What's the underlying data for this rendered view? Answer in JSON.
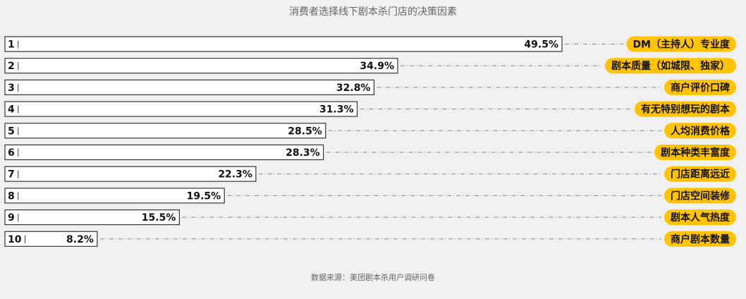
{
  "title": "消费者选择线下剧本杀门店的决策因素",
  "source": "数据来源：美团剧本杀用户调研问卷",
  "colors": {
    "bar_fill": "#ffffff",
    "bar_stroke": "#333333",
    "pill": "#ffc300",
    "leader": "#888888",
    "background": "#f0f0f0"
  },
  "chart_data": {
    "type": "bar",
    "orientation": "horizontal",
    "unit": "%",
    "title": "消费者选择线下剧本杀门店的决策因素",
    "ranks": [
      "1",
      "2",
      "3",
      "4",
      "5",
      "6",
      "7",
      "8",
      "9",
      "10"
    ],
    "categories": [
      "DM（主持人）专业度",
      "剧本质量（如城限、独家）",
      "商户评价口碑",
      "有无特别想玩的剧本",
      "人均消费价格",
      "剧本种类丰富度",
      "门店距离远近",
      "门店空间装修",
      "剧本人气热度",
      "商户剧本数量"
    ],
    "values": [
      49.5,
      34.9,
      32.8,
      31.3,
      28.5,
      28.3,
      22.3,
      19.5,
      15.5,
      8.2
    ],
    "value_labels": [
      "49.5%",
      "34.9%",
      "32.8%",
      "31.3%",
      "28.5%",
      "28.3%",
      "22.3%",
      "19.5%",
      "15.5%",
      "8.2%"
    ],
    "grid": false,
    "legend": "none"
  }
}
